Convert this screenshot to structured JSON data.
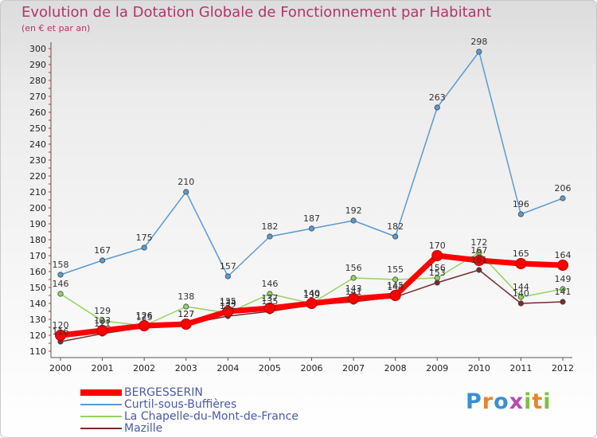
{
  "header": {
    "title": "Evolution de la Dotation Globale de Fonctionnement par Habitant",
    "subtitle": "(en € et par an)"
  },
  "brand": {
    "text": "Proxiti"
  },
  "chart_data": {
    "type": "line",
    "title": "Evolution de la Dotation Globale de Fonctionnement par Habitant",
    "subtitle": "(en € et par an)",
    "xlabel": "",
    "ylabel": "",
    "x": [
      "2000",
      "2001",
      "2002",
      "2003",
      "2004",
      "2005",
      "2006",
      "2007",
      "2008",
      "2009",
      "2010",
      "2011",
      "2012"
    ],
    "ylim": [
      110,
      300
    ],
    "yticks": [
      110,
      120,
      130,
      140,
      150,
      160,
      170,
      180,
      190,
      200,
      210,
      220,
      230,
      240,
      250,
      260,
      270,
      280,
      290,
      300
    ],
    "grid": false,
    "legend_position": "bottom-left",
    "series": [
      {
        "name": "BERGESSERIN",
        "color": "#ff0000",
        "values": [
          120,
          123,
          126,
          127,
          135,
          137,
          140,
          143,
          145,
          170,
          167,
          165,
          164
        ]
      },
      {
        "name": "Curtil-sous-Buffières",
        "color": "#5a9ad2",
        "values": [
          158,
          167,
          175,
          210,
          157,
          182,
          187,
          192,
          182,
          263,
          298,
          196,
          206
        ]
      },
      {
        "name": "La Chapelle-du-Mont-de-France",
        "color": "#92d460",
        "values": [
          146,
          129,
          126,
          138,
          134,
          146,
          140,
          156,
          155,
          156,
          172,
          144,
          149
        ]
      },
      {
        "name": "Mazille",
        "color": "#7a2b2b",
        "values": [
          116,
          121,
          125,
          127,
          132,
          135,
          139,
          141,
          144,
          153,
          161,
          140,
          141
        ]
      }
    ]
  }
}
